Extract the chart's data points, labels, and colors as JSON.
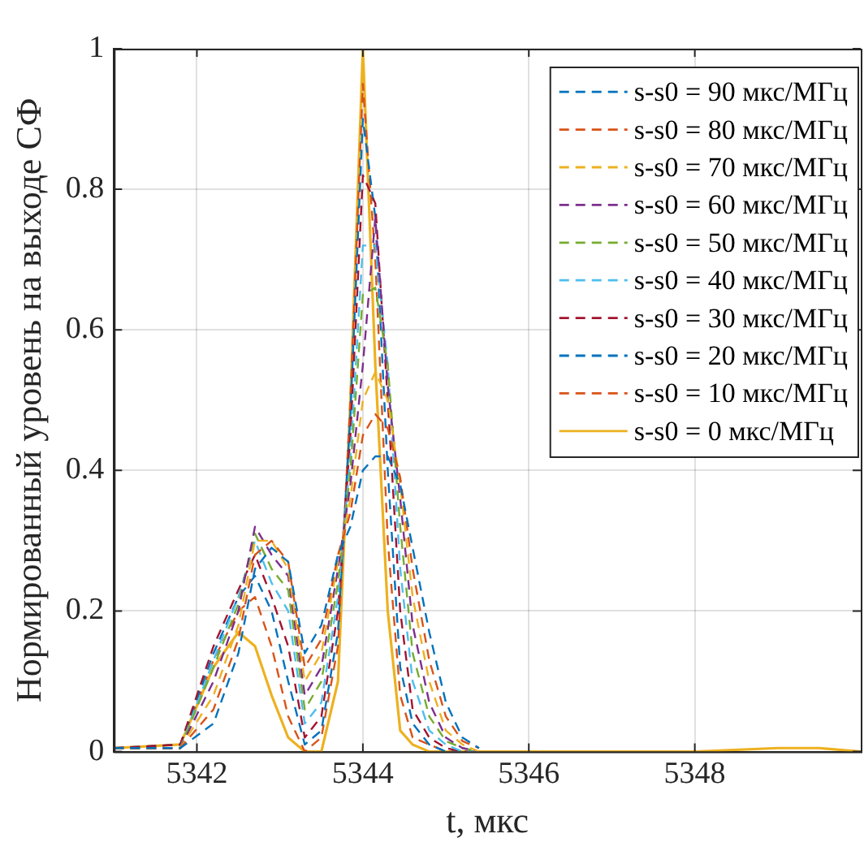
{
  "chart_data": {
    "type": "line",
    "xlabel": "t, мкс",
    "ylabel": "Нормированный уровень на выходе СФ",
    "x": [
      5341,
      5341.8,
      5342.2,
      5342.5,
      5342.7,
      5342.9,
      5343.1,
      5343.3,
      5343.5,
      5343.7,
      5343.85,
      5344.0,
      5344.15,
      5344.3,
      5344.45,
      5344.6,
      5344.8,
      5345.0,
      5345.2,
      5345.4,
      5345.6,
      5346,
      5347,
      5348,
      5349,
      5349.5,
      5350
    ],
    "xlim": [
      5341,
      5350
    ],
    "xticks": [
      5342,
      5344,
      5346,
      5348
    ],
    "ylim": [
      0,
      1
    ],
    "yticks": [
      0,
      0.2,
      0.4,
      0.6,
      0.8,
      1
    ],
    "grid": true,
    "legend": "top right",
    "marker": "none",
    "series": [
      {
        "name": "s-s0 = 90 мкс/МГц",
        "color": "#0072bd",
        "line_style": "dashed",
        "values": [
          0.005,
          0.005,
          0.04,
          0.14,
          0.26,
          0.29,
          0.27,
          0.14,
          0.18,
          0.28,
          0.32,
          0.4,
          0.42,
          0.42,
          0.38,
          0.29,
          0.17,
          0.07,
          0.02,
          0.005,
          null,
          null,
          null,
          null,
          null,
          null,
          null
        ]
      },
      {
        "name": "s-s0 = 80 мкс/МГц",
        "color": "#d95319",
        "line_style": "dashed",
        "values": [
          0.005,
          0.005,
          0.06,
          0.16,
          0.28,
          0.3,
          0.27,
          0.12,
          0.16,
          0.28,
          0.34,
          0.45,
          0.48,
          0.46,
          0.39,
          0.26,
          0.13,
          0.05,
          0.015,
          0.005,
          null,
          null,
          null,
          null,
          null,
          null,
          null
        ]
      },
      {
        "name": "s-s0 = 70 мкс/МГц",
        "color": "#edb120",
        "line_style": "dashed",
        "values": [
          0.005,
          0.005,
          0.08,
          0.18,
          0.3,
          0.3,
          0.26,
          0.1,
          0.14,
          0.27,
          0.36,
          0.5,
          0.54,
          0.5,
          0.38,
          0.22,
          0.1,
          0.03,
          0.01,
          0,
          null,
          null,
          null,
          null,
          null,
          null,
          null
        ]
      },
      {
        "name": "s-s0 = 60 мкс/МГц",
        "color": "#7e2f8e",
        "line_style": "dashed",
        "values": [
          0.005,
          0.005,
          0.1,
          0.2,
          0.32,
          0.28,
          0.25,
          0.08,
          0.12,
          0.26,
          0.38,
          0.55,
          0.76,
          0.52,
          0.36,
          0.18,
          0.07,
          0.02,
          0.005,
          0,
          null,
          null,
          null,
          null,
          null,
          null,
          null
        ]
      },
      {
        "name": "s-s0 = 50 мкс/МГц",
        "color": "#77ac30",
        "line_style": "dashed",
        "values": [
          0.005,
          0.005,
          0.12,
          0.21,
          0.31,
          0.26,
          0.23,
          0.06,
          0.1,
          0.24,
          0.4,
          0.65,
          0.66,
          0.55,
          0.32,
          0.14,
          0.05,
          0.015,
          0.005,
          0,
          null,
          null,
          null,
          null,
          null,
          null,
          null
        ]
      },
      {
        "name": "s-s0 = 40 мкс/МГц",
        "color": "#4dbeee",
        "line_style": "dashed",
        "values": [
          0.005,
          0.005,
          0.13,
          0.22,
          0.3,
          0.24,
          0.2,
          0.04,
          0.07,
          0.22,
          0.42,
          0.72,
          0.72,
          0.55,
          0.26,
          0.1,
          0.03,
          0.01,
          0,
          0,
          null,
          null,
          null,
          null,
          null,
          null,
          null
        ]
      },
      {
        "name": "s-s0 = 30 мкс/МГц",
        "color": "#a2142f",
        "line_style": "dashed",
        "values": [
          0.005,
          0.01,
          0.15,
          0.23,
          0.28,
          0.22,
          0.15,
          0.02,
          0.05,
          0.2,
          0.45,
          0.82,
          0.78,
          0.5,
          0.2,
          0.06,
          0.02,
          0.005,
          0,
          0,
          null,
          null,
          null,
          null,
          null,
          null,
          null
        ]
      },
      {
        "name": "s-s0 = 20 мкс/МГц",
        "color": "#0072bd",
        "line_style": "dashed",
        "values": [
          0.005,
          0.01,
          0.14,
          0.22,
          0.25,
          0.2,
          0.1,
          0.01,
          0.03,
          0.17,
          0.48,
          0.9,
          0.76,
          0.4,
          0.12,
          0.04,
          0.01,
          0,
          0,
          0,
          null,
          null,
          null,
          null,
          null,
          null,
          null
        ]
      },
      {
        "name": "s-s0 = 10 мкс/МГц",
        "color": "#d95319",
        "line_style": "dashed",
        "values": [
          0.005,
          0.01,
          0.13,
          0.2,
          0.22,
          0.15,
          0.05,
          0,
          0.02,
          0.15,
          0.5,
          0.95,
          0.7,
          0.3,
          0.08,
          0.02,
          0.01,
          0,
          0,
          0,
          null,
          null,
          null,
          null,
          null,
          null,
          null
        ]
      },
      {
        "name": "s-s0 = 0 мкс/МГц",
        "color": "#edb120",
        "line_style": "solid",
        "values": [
          0.005,
          0.01,
          0.12,
          0.17,
          0.15,
          0.08,
          0.02,
          0,
          0,
          0.1,
          0.5,
          1,
          0.55,
          0.2,
          0.03,
          0.01,
          0,
          0,
          0,
          0,
          0,
          0,
          0,
          0,
          0.005,
          0.005,
          0
        ]
      }
    ]
  }
}
